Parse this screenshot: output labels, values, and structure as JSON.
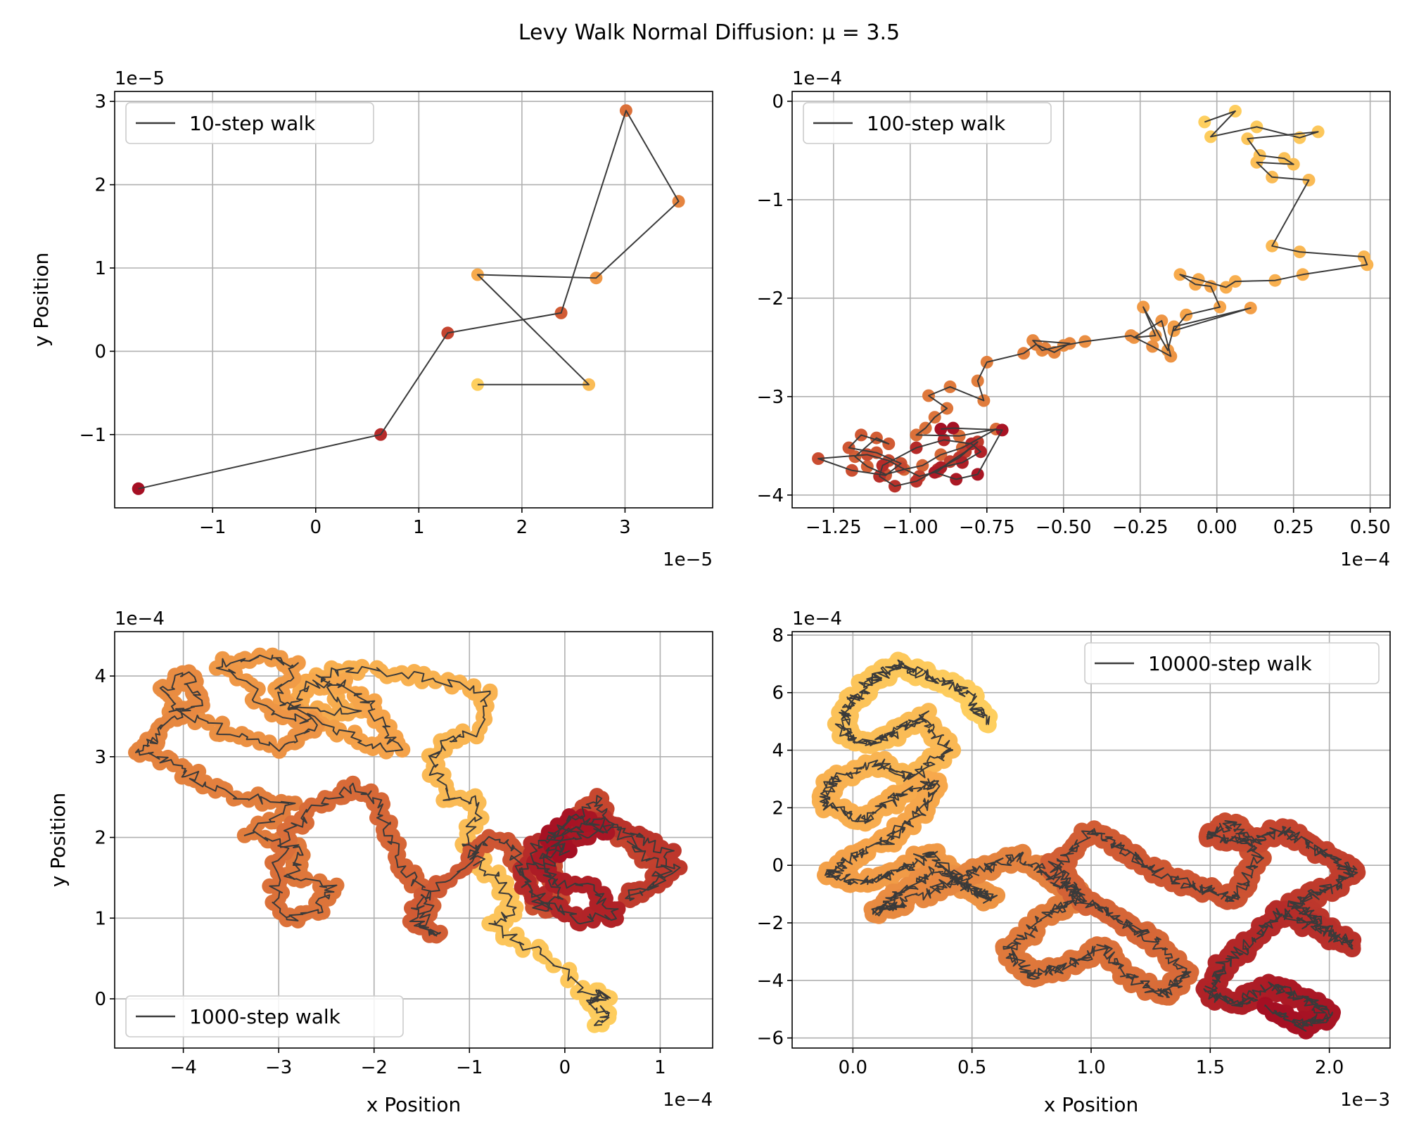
{
  "figure": {
    "title": "Levy Walk Normal Diffusion: μ = 3.5",
    "xlabel": "x Position",
    "ylabel": "y Position",
    "colors": {
      "line": "#3a3a3a",
      "grid": "#b0b0b0",
      "scatter_cmap": [
        "#fecf5f",
        "#f6a54a",
        "#e07b3c",
        "#c94b30",
        "#a50f23"
      ]
    }
  },
  "chart_data": [
    {
      "type": "scatter",
      "title": "",
      "series_label": "10-step walk",
      "legend": "upper left",
      "x_exp": "1e−5",
      "y_exp": "1e−5",
      "xlim": [
        -1.95,
        3.85
      ],
      "ylim": [
        -1.88,
        3.12
      ],
      "xticks": [
        -1,
        0,
        1,
        2,
        3
      ],
      "xticklabels": [
        "−1",
        "0",
        "1",
        "2",
        "3"
      ],
      "yticks": [
        -1,
        0,
        1,
        2,
        3
      ],
      "yticklabels": [
        "−1",
        "0",
        "1",
        "2",
        "3"
      ],
      "xlabel": "",
      "ylabel": "y Position",
      "x": [
        1.57,
        2.65,
        1.57,
        2.72,
        3.52,
        3.01,
        2.38,
        1.28,
        0.63,
        -1.72
      ],
      "y": [
        -0.4,
        -0.4,
        0.92,
        0.88,
        1.8,
        2.89,
        0.46,
        0.22,
        -1.0,
        -1.65
      ]
    },
    {
      "type": "scatter",
      "series_label": "100-step walk",
      "legend": "upper left",
      "x_exp": "1e−4",
      "y_exp": "1e−4",
      "xlim": [
        -1.385,
        0.565
      ],
      "ylim": [
        -4.13,
        0.1
      ],
      "xticks": [
        -1.25,
        -1.0,
        -0.75,
        -0.5,
        -0.25,
        0.0,
        0.25,
        0.5
      ],
      "xticklabels": [
        "−1.25",
        "−1.00",
        "−0.75",
        "−0.50",
        "−0.25",
        "0.00",
        "0.25",
        "0.50"
      ],
      "yticks": [
        0,
        -1,
        -2,
        -3,
        -4
      ],
      "yticklabels": [
        "0",
        "−1",
        "−2",
        "−3",
        "−4"
      ],
      "xlabel": "",
      "ylabel": "",
      "x": [
        -0.04,
        0.06,
        -0.02,
        0.13,
        0.27,
        0.33,
        0.1,
        0.14,
        0.22,
        0.25,
        0.13,
        0.18,
        0.3,
        0.18,
        0.27,
        0.48,
        0.49,
        0.28,
        0.19,
        0.06,
        0.03,
        -0.06,
        -0.12,
        -0.07,
        -0.02,
        0.01,
        -0.1,
        -0.14,
        0.11,
        -0.14,
        -0.16,
        -0.24,
        -0.2,
        -0.27,
        -0.18,
        -0.15,
        -0.21,
        -0.28,
        -0.43,
        -0.5,
        -0.57,
        -0.6,
        -0.48,
        -0.53,
        -0.56,
        -0.59,
        -0.63,
        -0.75,
        -0.78,
        -0.76,
        -0.87,
        -0.94,
        -0.88,
        -0.92,
        -0.95,
        -0.98,
        -0.84,
        -0.72,
        -0.83,
        -0.9,
        -0.96,
        -1.02,
        -1.08,
        -1.14,
        -1.18,
        -1.11,
        -1.07,
        -1.16,
        -1.2,
        -1.11,
        -1.03,
        -1.08,
        -1.19,
        -1.3,
        -1.14,
        -1.07,
        -1.03,
        -0.97,
        -0.91,
        -0.87,
        -0.82,
        -0.78,
        -0.84,
        -0.91,
        -0.98,
        -1.05,
        -1.1,
        -1.09,
        -0.98,
        -0.89,
        -0.8,
        -0.77,
        -0.83,
        -0.9,
        -0.92,
        -0.85,
        -0.78,
        -0.7,
        -0.86,
        -0.9
      ],
      "y": [
        -0.21,
        -0.1,
        -0.36,
        -0.26,
        -0.37,
        -0.31,
        -0.38,
        -0.55,
        -0.58,
        -0.64,
        -0.62,
        -0.77,
        -0.8,
        -1.47,
        -1.53,
        -1.58,
        -1.66,
        -1.76,
        -1.82,
        -1.83,
        -1.89,
        -1.81,
        -1.76,
        -1.86,
        -1.88,
        -2.09,
        -2.17,
        -2.33,
        -2.1,
        -2.29,
        -2.53,
        -2.09,
        -2.38,
        -2.4,
        -2.23,
        -2.59,
        -2.49,
        -2.38,
        -2.44,
        -2.48,
        -2.53,
        -2.43,
        -2.46,
        -2.55,
        -2.51,
        -2.47,
        -2.56,
        -2.65,
        -2.84,
        -3.04,
        -2.9,
        -2.99,
        -3.12,
        -3.21,
        -3.32,
        -3.39,
        -3.4,
        -3.33,
        -3.52,
        -3.59,
        -3.7,
        -3.74,
        -3.79,
        -3.71,
        -3.61,
        -3.42,
        -3.48,
        -3.39,
        -3.52,
        -3.57,
        -3.68,
        -3.8,
        -3.75,
        -3.63,
        -3.59,
        -3.65,
        -3.72,
        -3.81,
        -3.76,
        -3.66,
        -3.56,
        -3.46,
        -3.62,
        -3.74,
        -3.86,
        -3.91,
        -3.81,
        -3.7,
        -3.52,
        -3.44,
        -3.48,
        -3.56,
        -3.67,
        -3.72,
        -3.77,
        -3.84,
        -3.79,
        -3.34,
        -3.32,
        -3.33
      ]
    },
    {
      "type": "scatter",
      "series_label": "1000-step walk",
      "legend": "lower left",
      "x_exp": "1e−4",
      "y_exp": "1e−4",
      "xlim": [
        -4.72,
        1.55
      ],
      "ylim": [
        -0.61,
        4.55
      ],
      "xticks": [
        -4,
        -3,
        -2,
        -1,
        0,
        1
      ],
      "xticklabels": [
        "−4",
        "−3",
        "−2",
        "−1",
        "0",
        "1"
      ],
      "yticks": [
        0,
        1,
        2,
        3,
        4
      ],
      "yticklabels": [
        "0",
        "1",
        "2",
        "3",
        "4"
      ],
      "xlabel": "x Position",
      "ylabel": "y Position",
      "n_points": 1000,
      "waypoints_x": [
        0.35,
        0.42,
        0.28,
        0.45,
        0.25,
        -0.3,
        -0.78,
        -0.55,
        -0.72,
        -0.95,
        -1.03,
        -0.86,
        -1.25,
        -1.4,
        -1.3,
        -0.95,
        -0.8,
        -1.5,
        -2.25,
        -2.6,
        -2.2,
        -2.85,
        -2.75,
        -2.4,
        -2.1,
        -1.9,
        -1.75,
        -2.25,
        -2.85,
        -3.05,
        -2.8,
        -3.2,
        -3.6,
        -3.1,
        -2.6,
        -3.0,
        -3.55,
        -4.05,
        -4.2,
        -3.95,
        -3.85,
        -4.15,
        -4.3,
        -4.45,
        -4.1,
        -3.85,
        -3.4,
        -2.85,
        -3.3,
        -2.7,
        -2.9,
        -2.45,
        -2.6,
        -2.95,
        -3.05,
        -2.9,
        -2.55,
        -2.15,
        -1.95,
        -1.85,
        -1.65,
        -1.4,
        -1.5,
        -1.3,
        -1.6,
        -1.4,
        -0.95,
        -0.75,
        -0.55,
        -0.4,
        -0.25,
        -0.05,
        -0.2,
        0.1,
        0.35,
        0.5,
        0.8,
        1.05,
        0.9,
        0.65,
        1.15,
        1.05,
        0.75,
        0.4,
        0.05,
        -0.3,
        -0.45,
        -0.15,
        0.2,
        0.55,
        0.3,
        -0.1,
        -0.3,
        0.05,
        0.4,
        0.15,
        -0.15,
        0.0
      ],
      "waypoints_y": [
        -0.28,
        -0.2,
        -0.05,
        0.05,
        0.1,
        0.6,
        0.9,
        1.1,
        1.5,
        1.75,
        1.95,
        2.45,
        2.5,
        2.9,
        3.2,
        3.3,
        3.8,
        4.0,
        4.1,
        4.0,
        3.55,
        3.6,
        3.85,
        3.95,
        3.7,
        3.4,
        3.1,
        3.25,
        3.6,
        3.8,
        4.1,
        4.25,
        4.15,
        3.6,
        3.4,
        3.1,
        3.3,
        3.55,
        3.8,
        4.05,
        3.65,
        3.45,
        3.2,
        3.05,
        2.95,
        2.7,
        2.5,
        2.4,
        2.05,
        1.85,
        1.5,
        1.4,
        1.1,
        0.95,
        1.45,
        2.1,
        2.4,
        2.65,
        2.4,
        1.95,
        1.55,
        1.25,
        0.95,
        0.75,
        1.05,
        1.3,
        1.8,
        2.0,
        1.85,
        1.5,
        1.1,
        1.3,
        1.8,
        2.2,
        2.5,
        2.15,
        1.8,
        1.6,
        1.4,
        1.25,
        1.55,
        1.85,
        2.05,
        2.2,
        2.1,
        1.9,
        1.5,
        1.15,
        0.95,
        1.05,
        1.35,
        1.45,
        1.7,
        1.95,
        2.1,
        2.25,
        2.05,
        1.8
      ]
    },
    {
      "type": "scatter",
      "series_label": "10000-step walk",
      "legend": "upper right",
      "x_exp": "1e−3",
      "y_exp": "1e−4",
      "xlim": [
        -0.255,
        2.255
      ],
      "ylim": [
        -6.35,
        8.12
      ],
      "xticks": [
        0.0,
        0.5,
        1.0,
        1.5,
        2.0
      ],
      "xticklabels": [
        "0.0",
        "0.5",
        "1.0",
        "1.5",
        "2.0"
      ],
      "yticks": [
        -6,
        -4,
        -2,
        0,
        2,
        4,
        6,
        8
      ],
      "yticklabels": [
        "−6",
        "−4",
        "−2",
        "0",
        "2",
        "4",
        "6",
        "8"
      ],
      "xlabel": "x Position",
      "ylabel": "",
      "n_points": 10000,
      "waypoints_x": [
        0.55,
        0.48,
        0.3,
        0.2,
        0.1,
        0.0,
        -0.05,
        0.05,
        0.18,
        0.3,
        0.4,
        0.25,
        0.1,
        -0.08,
        -0.12,
        0.05,
        0.2,
        0.35,
        0.28,
        0.15,
        0.0,
        -0.1,
        0.05,
        0.2,
        0.32,
        0.45,
        0.58,
        0.5,
        0.35,
        0.2,
        0.1,
        0.22,
        0.4,
        0.55,
        0.7,
        0.85,
        0.95,
        0.8,
        0.65,
        0.75,
        0.9,
        1.05,
        1.15,
        1.3,
        1.4,
        1.25,
        1.1,
        0.95,
        0.85,
        1.0,
        1.15,
        1.28,
        1.45,
        1.6,
        1.7,
        1.6,
        1.5,
        1.65,
        1.8,
        1.95,
        2.1,
        2.0,
        1.85,
        1.95,
        2.1,
        1.95,
        1.8,
        1.7,
        1.55,
        1.5,
        1.62,
        1.75,
        1.9,
        2.0,
        1.88,
        1.75
      ],
      "waypoints_y": [
        5.0,
        6.0,
        6.6,
        7.0,
        6.5,
        5.8,
        4.8,
        4.2,
        4.6,
        5.2,
        4.0,
        3.0,
        3.6,
        3.0,
        2.2,
        1.5,
        2.5,
        2.9,
        1.8,
        0.9,
        0.3,
        -0.3,
        -0.6,
        -0.2,
        0.4,
        -0.5,
        -1.2,
        -0.8,
        -0.2,
        -0.9,
        -1.6,
        -1.3,
        -0.6,
        -0.1,
        0.3,
        -0.5,
        -1.1,
        -1.8,
        -3.0,
        -3.8,
        -3.5,
        -2.8,
        -3.8,
        -4.5,
        -3.8,
        -2.5,
        -1.8,
        -1.0,
        0.0,
        1.2,
        0.5,
        -0.3,
        -0.8,
        -1.2,
        0.3,
        1.5,
        1.0,
        0.8,
        1.2,
        0.6,
        -0.2,
        -0.8,
        -1.3,
        -2.0,
        -2.8,
        -2.2,
        -1.6,
        -2.5,
        -3.5,
        -4.5,
        -4.8,
        -4.2,
        -4.6,
        -5.2,
        -5.6,
        -5.0
      ]
    }
  ]
}
